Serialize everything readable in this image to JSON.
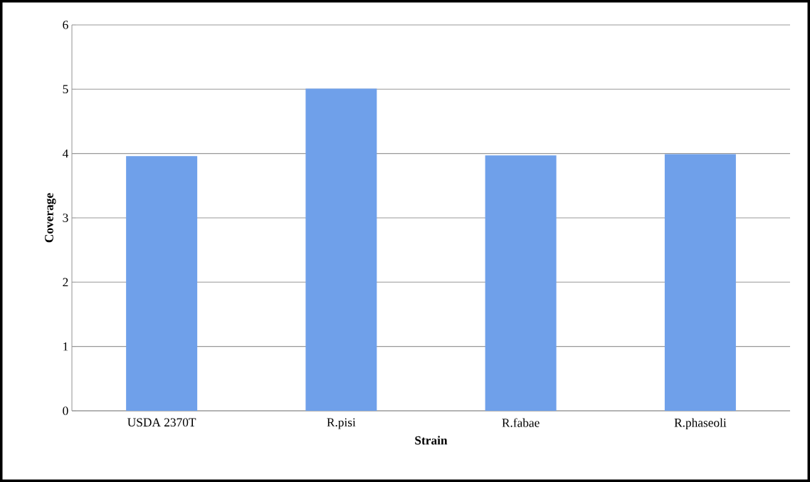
{
  "chart_data": {
    "type": "bar",
    "xlabel": "Strain",
    "ylabel": "Coverage",
    "categories": [
      "USDA 2370T",
      "R.pisi",
      "R.fabae",
      "R.phaseoli"
    ],
    "values": [
      3.96,
      5.01,
      3.97,
      3.99
    ],
    "color": "#6fa0ea",
    "ylim": [
      0,
      6
    ],
    "yticks": [
      0,
      1,
      2,
      3,
      4,
      5,
      6
    ],
    "grid": "y"
  }
}
